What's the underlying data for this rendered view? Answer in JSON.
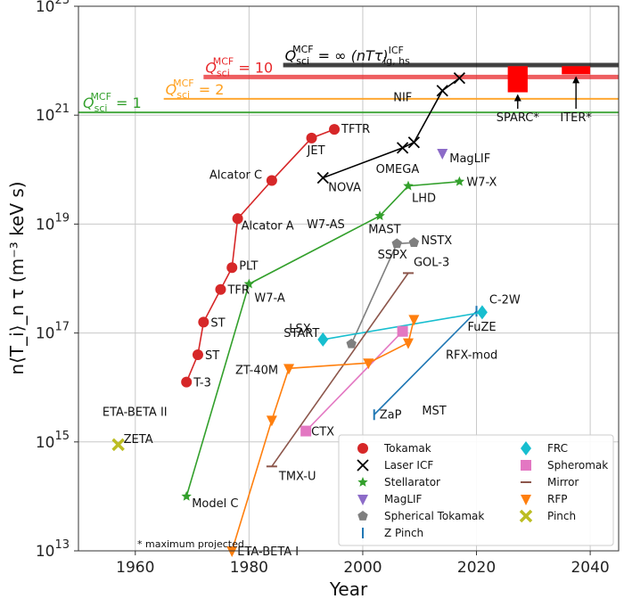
{
  "chart_data": {
    "type": "scatter",
    "xlabel": "Year",
    "ylabel": "n⟨T_i⟩_n τ (m⁻³ keV s)",
    "xlim": [
      1950,
      2045
    ],
    "ylim": [
      13,
      23
    ],
    "y_scale": "log",
    "grid": true,
    "legend_position": "bottom-right",
    "footnote": "* maximum projected",
    "x_ticks": [
      "1960",
      "1980",
      "2000",
      "2020",
      "2040"
    ],
    "y_ticks": [
      {
        "base": "10",
        "exp": "13",
        "value": 13
      },
      {
        "base": "10",
        "exp": "15",
        "value": 15
      },
      {
        "base": "10",
        "exp": "17",
        "value": 17
      },
      {
        "base": "10",
        "exp": "19",
        "value": 19
      },
      {
        "base": "10",
        "exp": "21",
        "value": 21
      },
      {
        "base": "10",
        "exp": "23",
        "value": 23
      }
    ],
    "q_lines": [
      {
        "label_main": "Q",
        "label_sup": "MCF",
        "label_sub": "sci",
        "label_rest": " = 1",
        "y": 21.05,
        "x_start": 1950,
        "color": "#33a02c"
      },
      {
        "label_main": "Q",
        "label_sup": "MCF",
        "label_sub": "sci",
        "label_rest": " = 2",
        "y": 21.3,
        "x_start": 1965,
        "color": "#ff9f1c"
      },
      {
        "label_main": "Q",
        "label_sup": "MCF",
        "label_sub": "sci",
        "label_rest": " = 10",
        "y": 21.7,
        "x_start": 1972,
        "color": "#e8282b"
      },
      {
        "label_main": "Q",
        "label_sup": "MCF",
        "label_sub": "sci",
        "label_rest": " = ∞ ",
        "extra": "(nTτ)",
        "extra_sup": "ICF",
        "extra_sub": "ig, hs",
        "y": 21.92,
        "x_start": 1986,
        "color": "#000000"
      }
    ],
    "series": [
      {
        "name": "Tokamak",
        "color": "#d62728",
        "marker": "circle",
        "connected": true,
        "points": [
          {
            "label": "T-3",
            "x": 1969,
            "y": 16.1
          },
          {
            "label": "ST",
            "x": 1971,
            "y": 16.6
          },
          {
            "label": "ST",
            "x": 1972,
            "y": 17.2
          },
          {
            "label": "TFR",
            "x": 1975,
            "y": 17.8
          },
          {
            "label": "PLT",
            "x": 1977,
            "y": 18.2
          },
          {
            "label": "Alcator A",
            "x": 1978,
            "y": 19.1
          },
          {
            "label": "Alcator C",
            "x": 1984,
            "y": 19.8
          },
          {
            "label": "JET",
            "x": 1991,
            "y": 20.58
          },
          {
            "label": "TFTR",
            "x": 1995,
            "y": 20.74
          }
        ]
      },
      {
        "name": "Laser ICF",
        "color": "#000000",
        "marker": "x",
        "connected": true,
        "points": [
          {
            "label": "NOVA",
            "x": 1993,
            "y": 19.85
          },
          {
            "label": "OMEGA",
            "x": 2007,
            "y": 20.4
          },
          {
            "label": "",
            "x": 2009,
            "y": 20.5
          },
          {
            "label": "NIF",
            "x": 2014,
            "y": 21.45
          },
          {
            "label": "",
            "x": 2017,
            "y": 21.68
          }
        ]
      },
      {
        "name": "Stellarator",
        "color": "#33a02c",
        "marker": "star",
        "connected": true,
        "points": [
          {
            "label": "Model C",
            "x": 1969,
            "y": 14.0
          },
          {
            "label": "W7-A",
            "x": 1980,
            "y": 17.9
          },
          {
            "label": "W7-AS",
            "x": 2003,
            "y": 19.15
          },
          {
            "label": "LHD",
            "x": 2008,
            "y": 19.7
          },
          {
            "label": "W7-X",
            "x": 2017,
            "y": 19.78
          }
        ]
      },
      {
        "name": "MagLIF",
        "color": "#8c6bc8",
        "marker": "tri_down",
        "connected": false,
        "points": [
          {
            "label": "MagLIF",
            "x": 2014,
            "y": 20.3
          }
        ]
      },
      {
        "name": "Spherical Tokamak",
        "color": "#7f7f7f",
        "marker": "pentagon",
        "connected": true,
        "points": [
          {
            "label": "START",
            "x": 1998,
            "y": 16.8
          },
          {
            "label": "MAST",
            "x": 2006,
            "y": 18.64
          },
          {
            "label": "NSTX",
            "x": 2009,
            "y": 18.66
          }
        ]
      },
      {
        "name": "Z Pinch",
        "color": "#1f77b4",
        "marker": "vline",
        "connected": true,
        "points": [
          {
            "label": "ZaP",
            "x": 2002,
            "y": 15.5
          },
          {
            "label": "FuZE",
            "x": 2020,
            "y": 17.4
          }
        ]
      },
      {
        "name": "FRC",
        "color": "#17becf",
        "marker": "diamond",
        "connected": true,
        "points": [
          {
            "label": "LSX",
            "x": 1993,
            "y": 16.88
          },
          {
            "label": "C-2W",
            "x": 2021,
            "y": 17.38
          }
        ]
      },
      {
        "name": "Spheromak",
        "color": "#e377c2",
        "marker": "square",
        "connected": true,
        "points": [
          {
            "label": "CTX",
            "x": 1990,
            "y": 15.2
          },
          {
            "label": "SSPX",
            "x": 2007,
            "y": 17.03
          }
        ]
      },
      {
        "name": "Mirror",
        "color": "#8c564b",
        "marker": "hline",
        "connected": true,
        "points": [
          {
            "label": "TMX-U",
            "x": 1984,
            "y": 14.55
          },
          {
            "label": "GOL-3",
            "x": 2008,
            "y": 18.1
          }
        ]
      },
      {
        "name": "RFP",
        "color": "#ff7f0e",
        "marker": "tri_down",
        "connected": true,
        "points": [
          {
            "label": "ETA-BETA I",
            "x": 1977,
            "y": 13.0
          },
          {
            "label": "ETA-BETA II",
            "x": 1984,
            "y": 15.4
          },
          {
            "label": "ZT-40M",
            "x": 1987,
            "y": 16.35
          },
          {
            "label": "MST",
            "x": 2001,
            "y": 16.45
          },
          {
            "label": "RFX-mod",
            "x": 2008,
            "y": 16.82
          },
          {
            "label": "",
            "x": 2009,
            "y": 17.25
          }
        ]
      },
      {
        "name": "Pinch",
        "color": "#bcbd22",
        "marker": "x_thick",
        "connected": false,
        "points": [
          {
            "label": "ZETA",
            "x": 1957,
            "y": 14.95
          }
        ]
      }
    ],
    "projected": [
      {
        "label": "SPARC*",
        "x0": 2025.5,
        "x1": 2029,
        "y0": 21.42,
        "y1": 21.9
      },
      {
        "label": "ITER*",
        "x0": 2035,
        "x1": 2040,
        "y0": 21.75,
        "y1": 21.9
      }
    ]
  }
}
